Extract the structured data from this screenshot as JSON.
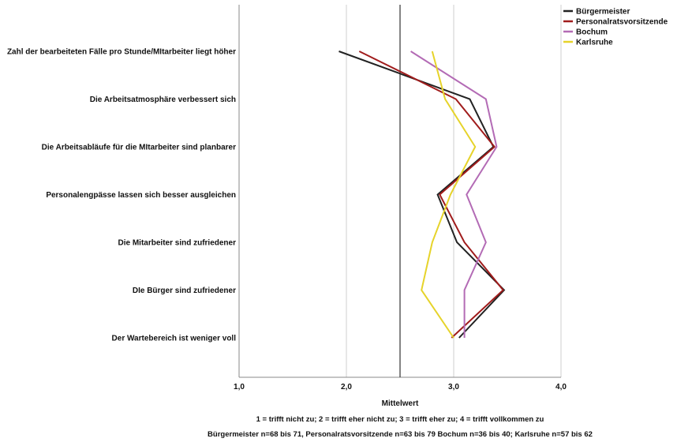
{
  "chart_data": {
    "type": "line",
    "orientation": "horizontal",
    "categories": [
      "Zahl der bearbeiteten Fälle pro Stunde/MItarbeiter liegt höher",
      "Die Arbeitsatmosphäre verbessert sich",
      "Die Arbeitsabläufe für die MItarbeiter sind planbarer",
      "Personalengpässe lassen sich besser ausgleichen",
      "Die Mitarbeiter sind zufriedener",
      "DIe Bürger sind zufriedener",
      "Der Wartebereich ist weniger voll"
    ],
    "series": [
      {
        "name": "Bürgermeister",
        "color": "#222222",
        "values": [
          1.93,
          3.15,
          3.37,
          2.85,
          3.03,
          3.47,
          3.05
        ]
      },
      {
        "name": "Personalratsvorsitzende",
        "color": "#a01c1c",
        "values": [
          2.12,
          3.02,
          3.38,
          2.87,
          3.1,
          3.46,
          2.98
        ]
      },
      {
        "name": "Bochum",
        "color": "#b36bb5",
        "values": [
          2.6,
          3.3,
          3.4,
          3.12,
          3.3,
          3.1,
          3.1
        ]
      },
      {
        "name": "Karlsruhe",
        "color": "#e6d32a",
        "values": [
          2.8,
          2.92,
          3.2,
          2.97,
          2.8,
          2.7,
          3.0
        ]
      }
    ],
    "xlim": [
      1.0,
      4.0
    ],
    "xticks": [
      "1,0",
      "2,0",
      "3,0",
      "4,0"
    ],
    "xtick_values": [
      1,
      2,
      3,
      4
    ],
    "xlabel": "Mittelwert",
    "reference_line": 2.5,
    "grid": true,
    "legend_position": "top-right"
  },
  "footnotes": {
    "scale": "1 = trifft nicht zu; 2 = trifft eher nicht zu; 3 = trifft eher zu; 4 = trifft vollkommen zu",
    "samples": "Bürgermeister n=68 bis 71, Personalratsvorsitzende n=63 bis 79 Bochum n=36 bis 40; Karlsruhe n=57 bis 62"
  }
}
